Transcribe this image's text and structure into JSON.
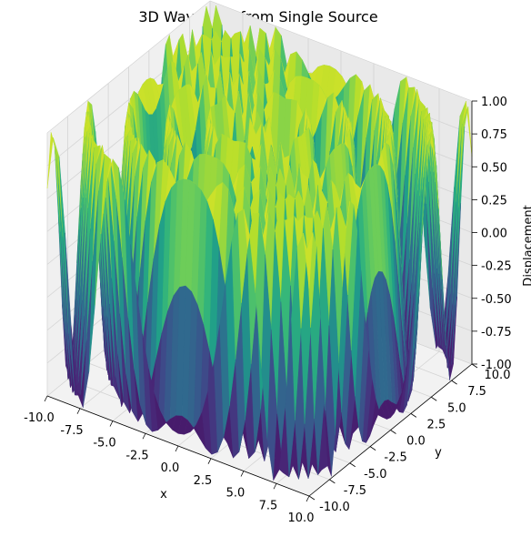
{
  "chart_data": {
    "type": "surface3d",
    "title": "3D Wave Plot from Single Source",
    "xlabel": "x",
    "ylabel": "y",
    "zlabel": "Displacement",
    "xlim": [
      -10,
      10
    ],
    "ylim": [
      -10,
      10
    ],
    "zlim": [
      -1,
      1
    ],
    "x_ticks": [
      "-10.0",
      "-7.5",
      "-5.0",
      "-2.5",
      "0.0",
      "2.5",
      "5.0",
      "7.5",
      "10.0"
    ],
    "y_ticks": [
      "-10.0",
      "-7.5",
      "-5.0",
      "-2.5",
      "0.0",
      "2.5",
      "5.0",
      "7.5",
      "10.0"
    ],
    "z_ticks": [
      "-1.00",
      "-0.75",
      "-0.50",
      "-0.25",
      "0.00",
      "0.25",
      "0.50",
      "0.75",
      "1.00"
    ],
    "colormap": "viridis",
    "source": [
      0,
      0
    ],
    "grid": true
  }
}
